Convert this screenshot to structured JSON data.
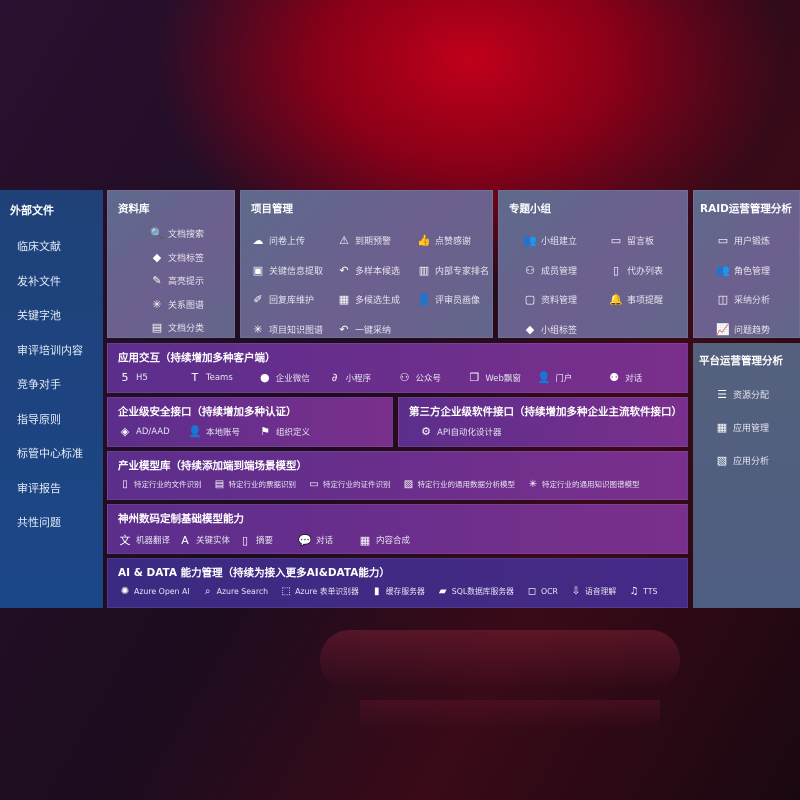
{
  "colors": {
    "sidebar": "#1f4178",
    "gray_panel": "#5d6a8c",
    "purple_panel": "#6a2f8c",
    "ai_panel": "#3c2a82",
    "background_glow": "#c0001a"
  },
  "sidebar": {
    "title": "外部文件",
    "items": [
      "临床文献",
      "发补文件",
      "关键字池",
      "审评培训内容",
      "竞争对手",
      "指导原则",
      "标管中心标准",
      "审评报告",
      "共性问题"
    ]
  },
  "panels": {
    "lib": {
      "title": "资料库",
      "items": [
        {
          "icon": "doc-search-icon",
          "label": "文档搜索"
        },
        {
          "icon": "tag-icon",
          "label": "文档标签"
        },
        {
          "icon": "highlight-pen-icon",
          "label": "高亮提示"
        },
        {
          "icon": "graph-icon",
          "label": "关系图谱"
        },
        {
          "icon": "doc-category-icon",
          "label": "文档分类"
        }
      ]
    },
    "pm": {
      "title": "项目管理",
      "items": [
        {
          "icon": "cloud-upload-icon",
          "label": "问卷上传"
        },
        {
          "icon": "alarm-icon",
          "label": "到期预警"
        },
        {
          "icon": "thumbs-up-icon",
          "label": "点赞感谢"
        },
        {
          "icon": "window-icon",
          "label": "关键信息提取"
        },
        {
          "icon": "reply-icon",
          "label": "多样本候选"
        },
        {
          "icon": "ranking-icon",
          "label": "内部专家排名"
        },
        {
          "icon": "pen-icon",
          "label": "回复库维护"
        },
        {
          "icon": "puzzle-icon",
          "label": "多候选生成"
        },
        {
          "icon": "user-icon",
          "label": "评审员画像"
        },
        {
          "icon": "graph-icon",
          "label": "项目知识图谱"
        },
        {
          "icon": "reply-icon",
          "label": "一键采纳"
        }
      ]
    },
    "grp": {
      "title": "专题小组",
      "items": [
        {
          "icon": "group-icon",
          "label": "小组建立"
        },
        {
          "icon": "bbs-icon",
          "label": "留言板"
        },
        {
          "icon": "add-user-icon",
          "label": "成员管理"
        },
        {
          "icon": "clipboard-icon",
          "label": "代办列表"
        },
        {
          "icon": "folder-icon",
          "label": "资料管理"
        },
        {
          "icon": "bell-icon",
          "label": "事项提醒"
        },
        {
          "icon": "tag-icon",
          "label": "小组标签"
        }
      ]
    },
    "raid": {
      "title": "RAID运营管理分析",
      "items": [
        {
          "icon": "id-card-icon",
          "label": "用户锻炼"
        },
        {
          "icon": "group-icon",
          "label": "角色管理"
        },
        {
          "icon": "qa-icon",
          "label": "采纳分析"
        },
        {
          "icon": "trend-chart-icon",
          "label": "问题趋势"
        }
      ]
    },
    "plat": {
      "title": "平台运营管理分析",
      "items": [
        {
          "icon": "checklist-icon",
          "label": "资源分配"
        },
        {
          "icon": "app-grid-icon",
          "label": "应用管理"
        },
        {
          "icon": "analytics-icon",
          "label": "应用分析"
        }
      ]
    },
    "app": {
      "title": "应用交互（持续增加多种客户端）",
      "items": [
        {
          "icon": "html5-icon",
          "label": "H5"
        },
        {
          "icon": "teams-icon",
          "label": "Teams"
        },
        {
          "icon": "wecom-icon",
          "label": "企业微信"
        },
        {
          "icon": "mini-program-icon",
          "label": "小程序"
        },
        {
          "icon": "public-account-icon",
          "label": "公众号"
        },
        {
          "icon": "web-window-icon",
          "label": "Web飘窗"
        },
        {
          "icon": "portal-user-icon",
          "label": "门户"
        },
        {
          "icon": "chat-people-icon",
          "label": "对话"
        }
      ]
    },
    "sec": {
      "title": "企业级安全接口（持续增加多种认证）",
      "items": [
        {
          "icon": "ad-icon",
          "label": "AD/AAD"
        },
        {
          "icon": "local-account-icon",
          "label": "本地账号"
        },
        {
          "icon": "org-icon",
          "label": "组织定义"
        }
      ]
    },
    "third": {
      "title": "第三方企业级软件接口（持续增加多种企业主流软件接口）",
      "items": [
        {
          "icon": "api-gear-icon",
          "label": "API自动化设计器"
        }
      ]
    },
    "ind": {
      "title": "产业模型库（持续添加端到端场景模型）",
      "items": [
        {
          "icon": "file-icon",
          "label": "特定行业的文件识别"
        },
        {
          "icon": "receipt-icon",
          "label": "特定行业的票据识别"
        },
        {
          "icon": "id-card-icon",
          "label": "特定行业的证件识别"
        },
        {
          "icon": "image-analysis-icon",
          "label": "特定行业的通用数据分析模型"
        },
        {
          "icon": "graph-icon",
          "label": "特定行业的通用知识图谱模型"
        }
      ]
    },
    "sz": {
      "title": "神州数码定制基础模型能力",
      "items": [
        {
          "icon": "translate-icon",
          "label": "机器翻译"
        },
        {
          "icon": "entity-icon",
          "label": "关键实体"
        },
        {
          "icon": "summary-icon",
          "label": "摘要"
        },
        {
          "icon": "chat-bubble-icon",
          "label": "对话"
        },
        {
          "icon": "compose-icon",
          "label": "内容合成"
        }
      ]
    },
    "ai": {
      "title": "AI & DATA 能力管理（持续为接入更多AI&DATA能力）",
      "items": [
        {
          "icon": "openai-icon",
          "label": "Azure Open AI"
        },
        {
          "icon": "search-doc-icon",
          "label": "Azure Search"
        },
        {
          "icon": "form-recognizer-icon",
          "label": "Azure 表单识别器"
        },
        {
          "icon": "cache-server-icon",
          "label": "缓存服务器"
        },
        {
          "icon": "sql-db-icon",
          "label": "SQL数据库服务器"
        },
        {
          "icon": "ocr-icon",
          "label": "OCR"
        },
        {
          "icon": "speech-icon",
          "label": "语音理解"
        },
        {
          "icon": "tts-icon",
          "label": "TTS"
        }
      ]
    }
  }
}
